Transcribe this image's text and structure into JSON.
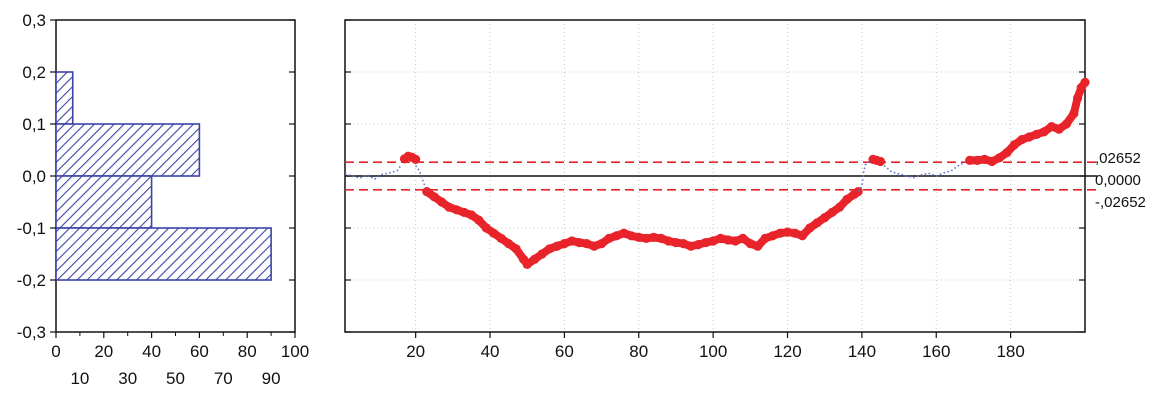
{
  "chart_data": [
    {
      "type": "bar",
      "orientation": "horizontal",
      "bins": [
        {
          "from": 0.1,
          "to": 0.2,
          "value": 7
        },
        {
          "from": 0.0,
          "to": 0.1,
          "value": 60
        },
        {
          "from": -0.1,
          "to": 0.0,
          "value": 40
        },
        {
          "from": -0.2,
          "to": -0.1,
          "value": 90
        }
      ],
      "xlim": [
        0,
        100
      ],
      "ylim": [
        -0.3,
        0.3
      ],
      "x_ticks_top_row": [
        "0",
        "20",
        "40",
        "60",
        "80",
        "100"
      ],
      "x_ticks_bottom_row": [
        "10",
        "30",
        "50",
        "70",
        "90"
      ],
      "y_ticks": [
        "0,3",
        "0,2",
        "0,1",
        "0,0",
        "-0,1",
        "-0,2",
        "-0,3"
      ],
      "y_tick_values": [
        0.3,
        0.2,
        0.1,
        0.0,
        -0.1,
        -0.2,
        -0.3
      ],
      "x_tick_values_top": [
        0,
        20,
        40,
        60,
        80,
        100
      ],
      "x_tick_values_bottom": [
        10,
        30,
        50,
        70,
        90
      ],
      "bar_color": "#3c44a8",
      "fill": "diagonal-hatch"
    },
    {
      "type": "scatter",
      "xlim": [
        1,
        200
      ],
      "ylim": [
        -0.3,
        0.3
      ],
      "grid": true,
      "x_ticks": [
        "20",
        "40",
        "60",
        "80",
        "100",
        "120",
        "140",
        "160",
        "180"
      ],
      "x_tick_values": [
        20,
        40,
        60,
        80,
        100,
        120,
        140,
        160,
        180
      ],
      "y_tick_values": [
        0.3,
        0.2,
        0.1,
        0.0,
        -0.1,
        -0.2,
        -0.3
      ],
      "reference_lines": [
        {
          "y": 0.02652,
          "label": ",02652",
          "style": "dashed",
          "color": "#e8242a"
        },
        {
          "y": 0.0,
          "label": "0,0000",
          "style": "solid",
          "color": "#111111"
        },
        {
          "y": -0.02652,
          "label": "-,02652",
          "style": "dashed",
          "color": "#e8242a"
        }
      ],
      "series": [
        {
          "style": "red-dots",
          "color": "#e8242a",
          "segments": [
            {
              "x": [
                17,
                18,
                19,
                20
              ],
              "y": [
                0.033,
                0.038,
                0.036,
                0.032
              ]
            },
            {
              "x": [
                23,
                25,
                27,
                29,
                31,
                33,
                35,
                37,
                39,
                41,
                43,
                45,
                47,
                49,
                50,
                52,
                54,
                56,
                58,
                60,
                62,
                64,
                66,
                68,
                70,
                72,
                74,
                76,
                78,
                80,
                82,
                84,
                86,
                88,
                90,
                92,
                94,
                96,
                98,
                100,
                102,
                104,
                106,
                108,
                110,
                112,
                114,
                116,
                118,
                120,
                122,
                124,
                126,
                128,
                130,
                132,
                134,
                136,
                138,
                139
              ],
              "y": [
                -0.03,
                -0.04,
                -0.05,
                -0.06,
                -0.065,
                -0.07,
                -0.075,
                -0.085,
                -0.1,
                -0.11,
                -0.12,
                -0.13,
                -0.14,
                -0.16,
                -0.17,
                -0.16,
                -0.15,
                -0.14,
                -0.135,
                -0.13,
                -0.125,
                -0.128,
                -0.13,
                -0.135,
                -0.13,
                -0.12,
                -0.115,
                -0.11,
                -0.115,
                -0.118,
                -0.12,
                -0.118,
                -0.12,
                -0.125,
                -0.128,
                -0.13,
                -0.135,
                -0.132,
                -0.128,
                -0.125,
                -0.12,
                -0.123,
                -0.125,
                -0.12,
                -0.13,
                -0.135,
                -0.12,
                -0.115,
                -0.11,
                -0.108,
                -0.11,
                -0.115,
                -0.1,
                -0.09,
                -0.08,
                -0.07,
                -0.06,
                -0.045,
                -0.035,
                -0.03
              ]
            },
            {
              "x": [
                143,
                144,
                145
              ],
              "y": [
                0.032,
                0.03,
                0.028
              ]
            },
            {
              "x": [
                169,
                171,
                173,
                175,
                177,
                179,
                181,
                183,
                185,
                187,
                189,
                191,
                193,
                195,
                197,
                198,
                199,
                200
              ],
              "y": [
                0.03,
                0.03,
                0.032,
                0.028,
                0.035,
                0.045,
                0.06,
                0.07,
                0.075,
                0.08,
                0.085,
                0.095,
                0.09,
                0.1,
                0.12,
                0.15,
                0.17,
                0.18
              ]
            }
          ]
        },
        {
          "style": "blue-dotted",
          "color": "#5a6fd0",
          "segments": [
            {
              "x": [
                1,
                3,
                5,
                7,
                9,
                11,
                13,
                15,
                16
              ],
              "y": [
                0.004,
                0.0,
                -0.004,
                0.002,
                -0.006,
                0.003,
                0.006,
                0.01,
                0.02
              ]
            },
            {
              "x": [
                20,
                21,
                22,
                23
              ],
              "y": [
                0.02,
                0.01,
                -0.01,
                -0.03
              ]
            },
            {
              "x": [
                139,
                140,
                140.5,
                141,
                142
              ],
              "y": [
                -0.03,
                -0.02,
                0.01,
                0.022,
                0.028
              ]
            },
            {
              "x": [
                146,
                148,
                150,
                152,
                154,
                156,
                158,
                160,
                162,
                164,
                166,
                168
              ],
              "y": [
                0.02,
                0.008,
                0.004,
                0.0,
                -0.003,
                0.002,
                0.005,
                0.0,
                0.006,
                0.01,
                0.02,
                0.028
              ]
            }
          ]
        }
      ]
    }
  ]
}
